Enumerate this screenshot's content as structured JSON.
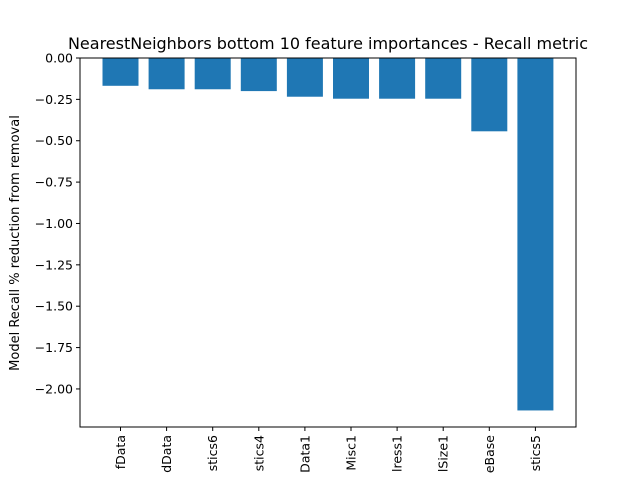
{
  "chart_data": {
    "type": "bar",
    "title": "NearestNeighbors bottom 10 feature importances - Recall metric",
    "xlabel": "",
    "ylabel": "Model Recall % reduction from removal",
    "categories": [
      "fData",
      "dData",
      "stics6",
      "stics4",
      "Data1",
      "Misc1",
      "lress1",
      "lSize1",
      "eBase",
      "stics5"
    ],
    "values": [
      -0.168,
      -0.189,
      -0.189,
      -0.2,
      -0.234,
      -0.246,
      -0.246,
      -0.246,
      -0.443,
      -2.13
    ],
    "ylim": [
      -2.23,
      0.0
    ],
    "yticks": [
      0.0,
      -0.25,
      -0.5,
      -0.75,
      -1.0,
      -1.25,
      -1.5,
      -1.75,
      -2.0
    ],
    "ytick_labels": [
      "0.00",
      "−0.25",
      "−0.50",
      "−0.75",
      "−1.00",
      "−1.25",
      "−1.50",
      "−1.75",
      "−2.00"
    ],
    "bar_color": "#1f77b4",
    "grid": false,
    "legend": false
  }
}
